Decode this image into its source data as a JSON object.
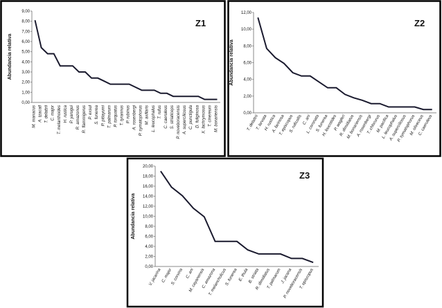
{
  "chart_data": [
    {
      "type": "line",
      "title": "Z1",
      "y_label": "Abundancia relativa",
      "color": "#1a1a2e",
      "categories": [
        "M. manacus",
        "A. tzacatl",
        "T. delattrii",
        "C. major",
        "T. melanthoides",
        "H. rustica",
        "P. yarugui",
        "R. amazonus",
        "R. flammigerus",
        "P. exsul",
        "S. funerea",
        "P. pitiayumi",
        "T. palmarum",
        "P. torquatus",
        "T. tyrannus",
        "P. rubinus",
        "A. rosenbergi",
        "P. symatophorus",
        "M. axillaris",
        "L. leucophalus",
        "T. rufus",
        "C. caeruleus",
        "S. striaticeps",
        "P. noveboracensis",
        "A. superciliosus",
        "C. punctigula",
        "D. fuliginosa",
        "X. lachrymosus",
        "T. cinereum",
        "M. bonariensis"
      ],
      "values": [
        8.1,
        5.4,
        4.8,
        4.8,
        3.6,
        3.6,
        3.6,
        3.0,
        3.0,
        2.4,
        2.4,
        2.1,
        1.8,
        1.8,
        1.8,
        1.8,
        1.5,
        1.2,
        1.2,
        1.2,
        0.9,
        0.9,
        0.6,
        0.6,
        0.6,
        0.6,
        0.6,
        0.3,
        0.3,
        0.3
      ],
      "ylim": [
        0,
        9
      ],
      "yticks": [
        {
          "value": 0,
          "label": "0,00"
        },
        {
          "value": 1,
          "label": "1,00"
        },
        {
          "value": 2,
          "label": "2,00"
        },
        {
          "value": 3,
          "label": "3,00"
        },
        {
          "value": 4,
          "label": "4,00"
        },
        {
          "value": 5,
          "label": "5,00"
        },
        {
          "value": 6,
          "label": "6,00"
        },
        {
          "value": 7,
          "label": "7,00"
        },
        {
          "value": 8,
          "label": "8,00"
        },
        {
          "value": 9,
          "label": "9,00"
        }
      ]
    },
    {
      "type": "line",
      "title": "Z2",
      "y_label": "Abundancia relativa",
      "color": "#1a1a2e",
      "categories": [
        "T. delattrii",
        "T. larvata",
        "H. rustica",
        "A. farinosa",
        "T. episcopus",
        "S. ruficollis",
        "C. ani",
        "L. coronata",
        "S. funerea",
        "H. leucotides",
        "P. wagleri",
        "R. dimidiatus",
        "M. bonariensis",
        "A. rosenbergi",
        "T. chlorurus",
        "M. pacifica",
        "L. leucophalus",
        "A. superciliosus",
        "P. symatophorus",
        "M. oliveceus",
        "C. caeruleus"
      ],
      "values": [
        11.4,
        7.7,
        6.6,
        5.9,
        4.8,
        4.4,
        4.4,
        3.7,
        3.0,
        3.0,
        2.2,
        1.8,
        1.5,
        1.1,
        1.1,
        0.7,
        0.7,
        0.7,
        0.7,
        0.4,
        0.4
      ],
      "ylim": [
        0,
        12
      ],
      "yticks": [
        {
          "value": 0,
          "label": "0,00"
        },
        {
          "value": 2,
          "label": "2,00"
        },
        {
          "value": 4,
          "label": "4,00"
        },
        {
          "value": 6,
          "label": "6,00"
        },
        {
          "value": 8,
          "label": "8,00"
        },
        {
          "value": 10,
          "label": "10,00"
        },
        {
          "value": 12,
          "label": "12,00"
        }
      ]
    },
    {
      "type": "line",
      "title": "Z3",
      "y_label": "Abundancia relativa",
      "color": "#1a1a2e",
      "categories": [
        "V. jacarina",
        "C. major",
        "S. corvina",
        "C. ani",
        "M. cayanensis",
        "C. amazona",
        "T. melancholicus",
        "S. funerea",
        "E. thula",
        "B. striata",
        "R. dimidiatus",
        "T. palmarum",
        "J. jacana",
        "P. noveboracensis",
        "T. episcopus"
      ],
      "values": [
        19.0,
        15.8,
        14.1,
        11.6,
        9.9,
        5.0,
        5.0,
        5.0,
        3.3,
        2.5,
        2.5,
        2.5,
        1.6,
        1.6,
        0.8
      ],
      "ylim": [
        0,
        20
      ],
      "yticks": [
        {
          "value": 0,
          "label": "0,00"
        },
        {
          "value": 2,
          "label": "2,00"
        },
        {
          "value": 4,
          "label": "4,00"
        },
        {
          "value": 6,
          "label": "6,00"
        },
        {
          "value": 8,
          "label": "8,00"
        },
        {
          "value": 10,
          "label": "10,00"
        },
        {
          "value": 12,
          "label": "12,00"
        },
        {
          "value": 14,
          "label": "14,00"
        },
        {
          "value": 16,
          "label": "16,00"
        },
        {
          "value": 18,
          "label": "18,00"
        },
        {
          "value": 20,
          "label": "20,00"
        }
      ]
    }
  ]
}
